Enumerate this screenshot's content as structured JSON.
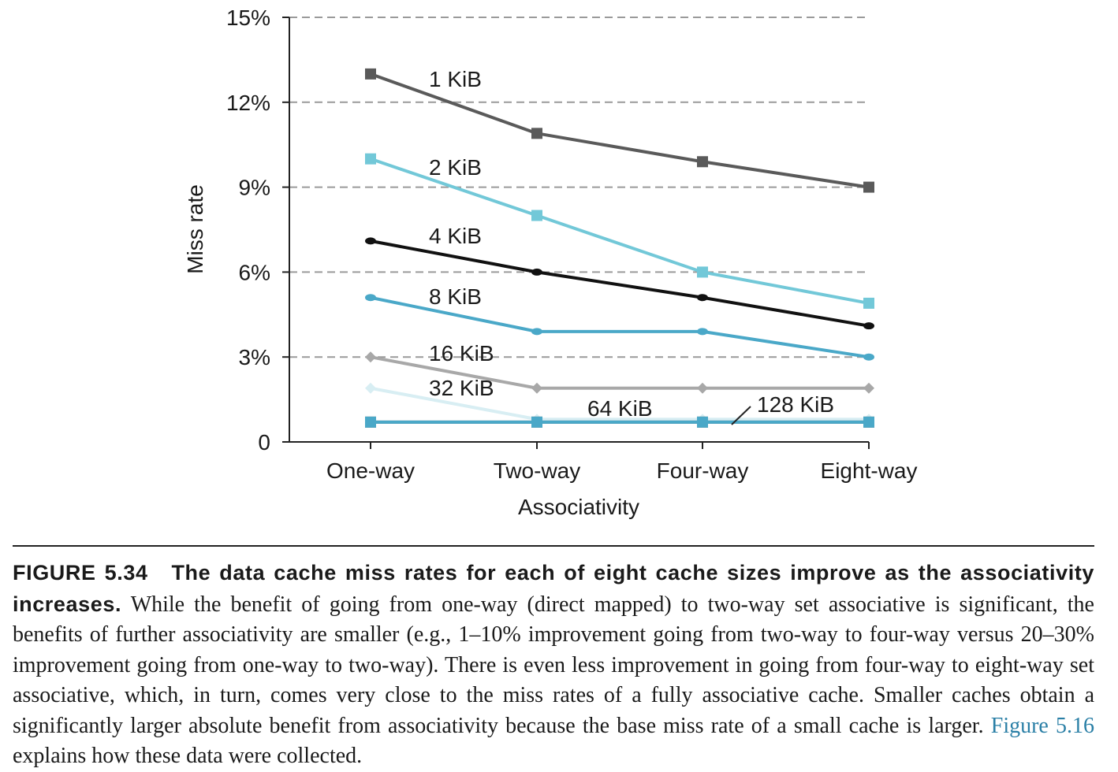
{
  "chart_data": {
    "type": "line",
    "xlabel": "Associativity",
    "ylabel": "Miss rate",
    "categories": [
      "One-way",
      "Two-way",
      "Four-way",
      "Eight-way"
    ],
    "ylim": [
      0,
      15
    ],
    "yticks": [
      0,
      3,
      6,
      9,
      12,
      15
    ],
    "ytick_labels": [
      "0",
      "3%",
      "6%",
      "9%",
      "12%",
      "15%"
    ],
    "grid": "horizontal dashed",
    "series": [
      {
        "name": "1 KiB",
        "values": [
          13.0,
          10.9,
          9.9,
          9.0
        ],
        "color": "#5a5a5a",
        "marker": "square"
      },
      {
        "name": "2 KiB",
        "values": [
          10.0,
          8.0,
          6.0,
          4.9
        ],
        "color": "#72c8d8",
        "marker": "square"
      },
      {
        "name": "4 KiB",
        "values": [
          7.1,
          6.0,
          5.1,
          4.1
        ],
        "color": "#111111",
        "marker": "circle"
      },
      {
        "name": "8 KiB",
        "values": [
          5.1,
          3.9,
          3.9,
          3.0
        ],
        "color": "#4aa8c8",
        "marker": "circle"
      },
      {
        "name": "16 KiB",
        "values": [
          3.0,
          1.9,
          1.9,
          1.9
        ],
        "color": "#a8a8a8",
        "marker": "diamond"
      },
      {
        "name": "32 KiB",
        "values": [
          1.9,
          0.8,
          0.8,
          0.8
        ],
        "color": "#d8eef3",
        "marker": "diamond"
      },
      {
        "name": "64 KiB",
        "values": [
          0.7,
          0.7,
          0.7,
          0.7
        ],
        "color": "#5a5a5a",
        "marker": "square"
      },
      {
        "name": "128 KiB",
        "values": [
          0.7,
          0.7,
          0.7,
          0.7
        ],
        "color": "#4aa8c8",
        "marker": "square"
      }
    ]
  },
  "caption": {
    "figure_label": "FIGURE 5.34",
    "title": "The data cache miss rates for each of eight cache sizes improve as the associativity increases.",
    "body_before_link": "While the benefit of going from one-way (direct mapped) to two-way set associative is significant, the benefits of further associativity are smaller (e.g., 1–10% improvement going from two-way to four-way versus 20–30% improvement going from one-way to two-way). There is even less improvement in going from four-way to eight-way set associative, which, in turn, comes very close to the miss rates of a fully associative cache. Smaller caches obtain a significantly larger absolute benefit from associativity because the base miss rate of a small cache is larger.",
    "link_text": "Figure 5.16",
    "body_after_link": "explains how these data were collected."
  }
}
